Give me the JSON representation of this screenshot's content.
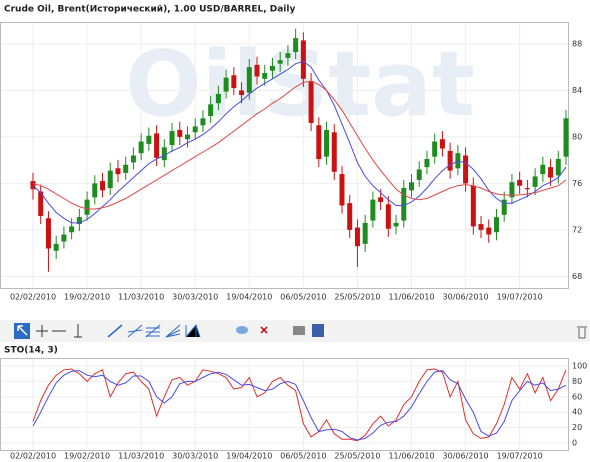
{
  "chart_data": [
    {
      "type": "candlestick",
      "title": "Crude Oil, Brent(Исторический), 1.00 USD/BARREL, Daily",
      "watermark": "OilStat",
      "categories": [
        "02/02/2010",
        null,
        null,
        null,
        null,
        null,
        null,
        "19/02/2010",
        null,
        null,
        null,
        null,
        null,
        null,
        "11/03/2010",
        null,
        null,
        null,
        null,
        null,
        null,
        "30/03/2010",
        null,
        null,
        null,
        null,
        null,
        null,
        "19/04/2010",
        null,
        null,
        null,
        null,
        null,
        null,
        "06/05/2010",
        null,
        null,
        null,
        null,
        null,
        null,
        "25/05/2010",
        null,
        null,
        null,
        null,
        null,
        null,
        "11/06/2010",
        null,
        null,
        null,
        null,
        null,
        null,
        "30/06/2010",
        null,
        null,
        null,
        null,
        null,
        null,
        "19/07/2010",
        null,
        null,
        null,
        null,
        null,
        null
      ],
      "open": [
        76.2,
        75.3,
        73.0,
        70.2,
        71.0,
        71.8,
        72.5,
        73.3,
        74.8,
        76.2,
        75.6,
        77.3,
        76.9,
        77.8,
        78.6,
        79.4,
        80.3,
        78.0,
        79.3,
        80.6,
        79.8,
        80.4,
        81.0,
        81.8,
        82.9,
        83.9,
        85.3,
        84.0,
        83.8,
        86.2,
        85.0,
        85.7,
        86.3,
        86.8,
        87.3,
        88.3,
        84.8,
        81.0,
        78.3,
        80.4,
        76.8,
        74.3,
        72.2,
        70.8,
        72.8,
        74.8,
        74.2,
        72.3,
        72.8,
        75.4,
        76.3,
        77.4,
        78.3,
        79.8,
        78.8,
        77.3,
        78.4,
        75.8,
        72.5,
        72.2,
        71.8,
        73.3,
        74.8,
        76.3,
        75.6,
        75.7,
        76.8,
        77.4,
        76.7,
        78.3
      ],
      "high": [
        76.9,
        75.9,
        73.6,
        71.5,
        72.3,
        73.0,
        73.8,
        75.3,
        76.7,
        76.9,
        77.8,
        78.0,
        78.3,
        79.1,
        80.3,
        80.8,
        81.0,
        79.8,
        81.2,
        81.3,
        80.9,
        81.6,
        82.3,
        83.5,
        84.4,
        85.8,
        86.0,
        84.7,
        86.7,
        86.9,
        86.2,
        86.8,
        87.3,
        87.9,
        89.3,
        89.0,
        85.5,
        81.7,
        81.3,
        81.1,
        77.5,
        75.0,
        72.9,
        73.3,
        75.3,
        75.5,
        74.9,
        73.3,
        76.3,
        76.8,
        77.9,
        78.8,
        80.3,
        80.5,
        79.5,
        79.3,
        79.1,
        76.5,
        73.2,
        72.9,
        73.8,
        75.3,
        76.8,
        77.0,
        76.3,
        77.3,
        78.3,
        78.1,
        78.8,
        82.3
      ],
      "low": [
        74.6,
        72.5,
        68.4,
        69.5,
        70.4,
        71.2,
        71.9,
        72.8,
        74.2,
        74.8,
        75.0,
        76.1,
        76.3,
        77.2,
        78.0,
        78.8,
        77.5,
        77.4,
        78.7,
        79.3,
        79.1,
        79.8,
        80.4,
        81.2,
        82.3,
        83.3,
        83.6,
        82.9,
        83.2,
        84.5,
        84.4,
        85.0,
        85.6,
        86.1,
        86.7,
        84.3,
        80.5,
        77.4,
        77.6,
        76.3,
        73.4,
        71.3,
        68.8,
        70.1,
        72.2,
        73.7,
        71.4,
        71.6,
        72.2,
        74.8,
        75.7,
        76.8,
        77.7,
        78.3,
        76.4,
        76.7,
        75.3,
        71.6,
        71.3,
        70.9,
        71.1,
        72.7,
        74.2,
        75.1,
        74.8,
        75.0,
        76.1,
        75.8,
        76.0,
        77.6
      ],
      "close": [
        75.5,
        73.2,
        70.4,
        70.8,
        71.6,
        72.3,
        73.1,
        74.6,
        76.0,
        75.4,
        77.1,
        76.8,
        77.6,
        78.4,
        79.6,
        80.1,
        78.2,
        79.1,
        80.5,
        80.0,
        80.2,
        80.9,
        81.6,
        82.8,
        83.7,
        85.1,
        84.2,
        83.6,
        86.0,
        85.2,
        85.5,
        86.1,
        86.6,
        87.2,
        88.5,
        85.0,
        81.2,
        78.1,
        80.6,
        77.0,
        74.1,
        72.0,
        70.6,
        72.6,
        74.6,
        74.4,
        72.1,
        72.6,
        75.6,
        76.1,
        77.2,
        78.1,
        79.6,
        79.0,
        77.1,
        78.6,
        76.0,
        72.3,
        72.0,
        71.6,
        73.1,
        74.6,
        76.1,
        75.8,
        75.5,
        76.6,
        77.6,
        76.5,
        78.1,
        81.6
      ],
      "up_color": "#1f8c1f",
      "down_color": "#cc1111",
      "series": [
        {
          "color": "#4a4ae6",
          "values": [
            75.8,
            75.2,
            74.3,
            73.5,
            73.0,
            72.6,
            72.6,
            72.9,
            73.4,
            74.0,
            74.6,
            75.3,
            75.9,
            76.5,
            77.1,
            77.7,
            78.1,
            78.4,
            78.8,
            79.1,
            79.5,
            79.8,
            80.2,
            80.7,
            81.3,
            82.0,
            82.6,
            83.1,
            83.7,
            84.2,
            84.6,
            85.0,
            85.4,
            85.8,
            86.3,
            86.5,
            86.0,
            84.9,
            84.0,
            82.7,
            81.1,
            79.5,
            77.8,
            76.6,
            75.8,
            75.2,
            74.6,
            74.1,
            74.1,
            74.4,
            74.9,
            75.6,
            76.4,
            77.1,
            77.6,
            77.9,
            77.8,
            77.2,
            76.4,
            75.4,
            74.7,
            74.3,
            74.3,
            74.6,
            74.9,
            75.3,
            75.8,
            76.1,
            76.5,
            77.4
          ]
        },
        {
          "color": "#e04848",
          "values": [
            76.0,
            75.8,
            75.5,
            75.1,
            74.7,
            74.3,
            74.0,
            73.8,
            73.8,
            73.9,
            74.1,
            74.4,
            74.7,
            75.1,
            75.5,
            75.9,
            76.3,
            76.7,
            77.1,
            77.5,
            77.9,
            78.3,
            78.7,
            79.1,
            79.5,
            80.0,
            80.5,
            81.0,
            81.5,
            82.0,
            82.4,
            82.9,
            83.3,
            83.8,
            84.3,
            84.7,
            84.8,
            84.5,
            84.0,
            83.2,
            82.3,
            81.2,
            80.1,
            79.0,
            78.0,
            77.1,
            76.3,
            75.5,
            75.0,
            74.7,
            74.6,
            74.7,
            75.0,
            75.3,
            75.6,
            75.8,
            75.9,
            75.8,
            75.6,
            75.3,
            75.1,
            75.0,
            75.0,
            75.0,
            75.1,
            75.2,
            75.4,
            75.6,
            75.8,
            76.3
          ]
        }
      ],
      "ylim": [
        67,
        89.8
      ],
      "yticks": [
        68,
        72,
        76,
        80,
        84,
        88
      ],
      "grid": true
    },
    {
      "type": "line",
      "title": "STO(14, 3)",
      "categories": [
        "02/02/2010",
        null,
        null,
        null,
        null,
        null,
        null,
        "19/02/2010",
        null,
        null,
        null,
        null,
        null,
        null,
        "11/03/2010",
        null,
        null,
        null,
        null,
        null,
        null,
        "30/03/2010",
        null,
        null,
        null,
        null,
        null,
        null,
        "19/04/2010",
        null,
        null,
        null,
        null,
        null,
        null,
        "06/05/2010",
        null,
        null,
        null,
        null,
        null,
        null,
        "25/05/2010",
        null,
        null,
        null,
        null,
        null,
        null,
        "11/06/2010",
        null,
        null,
        null,
        null,
        null,
        null,
        "30/06/2010",
        null,
        null,
        null,
        null,
        null,
        null,
        "19/07/2010",
        null,
        null,
        null,
        null,
        null,
        null
      ],
      "series": [
        {
          "color": "#e03030",
          "values": [
            28,
            55,
            75,
            88,
            95,
            96,
            90,
            80,
            90,
            95,
            60,
            78,
            90,
            92,
            80,
            70,
            35,
            60,
            82,
            85,
            75,
            80,
            95,
            93,
            90,
            85,
            70,
            72,
            85,
            60,
            65,
            80,
            85,
            75,
            68,
            25,
            8,
            15,
            30,
            12,
            5,
            5,
            3,
            10,
            25,
            35,
            22,
            30,
            50,
            60,
            80,
            95,
            96,
            92,
            60,
            80,
            30,
            12,
            6,
            8,
            25,
            50,
            85,
            70,
            90,
            65,
            85,
            55,
            70,
            95
          ]
        },
        {
          "color": "#4a4ae6",
          "values": [
            22,
            40,
            60,
            78,
            88,
            93,
            94,
            88,
            86,
            88,
            80,
            75,
            78,
            87,
            87,
            80,
            60,
            52,
            60,
            77,
            80,
            80,
            85,
            90,
            92,
            89,
            82,
            75,
            76,
            72,
            68,
            70,
            77,
            80,
            76,
            55,
            33,
            15,
            17,
            18,
            15,
            7,
            4,
            6,
            13,
            23,
            27,
            28,
            35,
            47,
            64,
            80,
            92,
            94,
            82,
            77,
            57,
            40,
            15,
            9,
            13,
            28,
            55,
            68,
            80,
            75,
            78,
            68,
            70,
            75
          ]
        }
      ],
      "ylim": [
        -9,
        109
      ],
      "yticks": [
        0,
        20,
        40,
        60,
        80,
        100
      ],
      "grid": true
    }
  ]
}
